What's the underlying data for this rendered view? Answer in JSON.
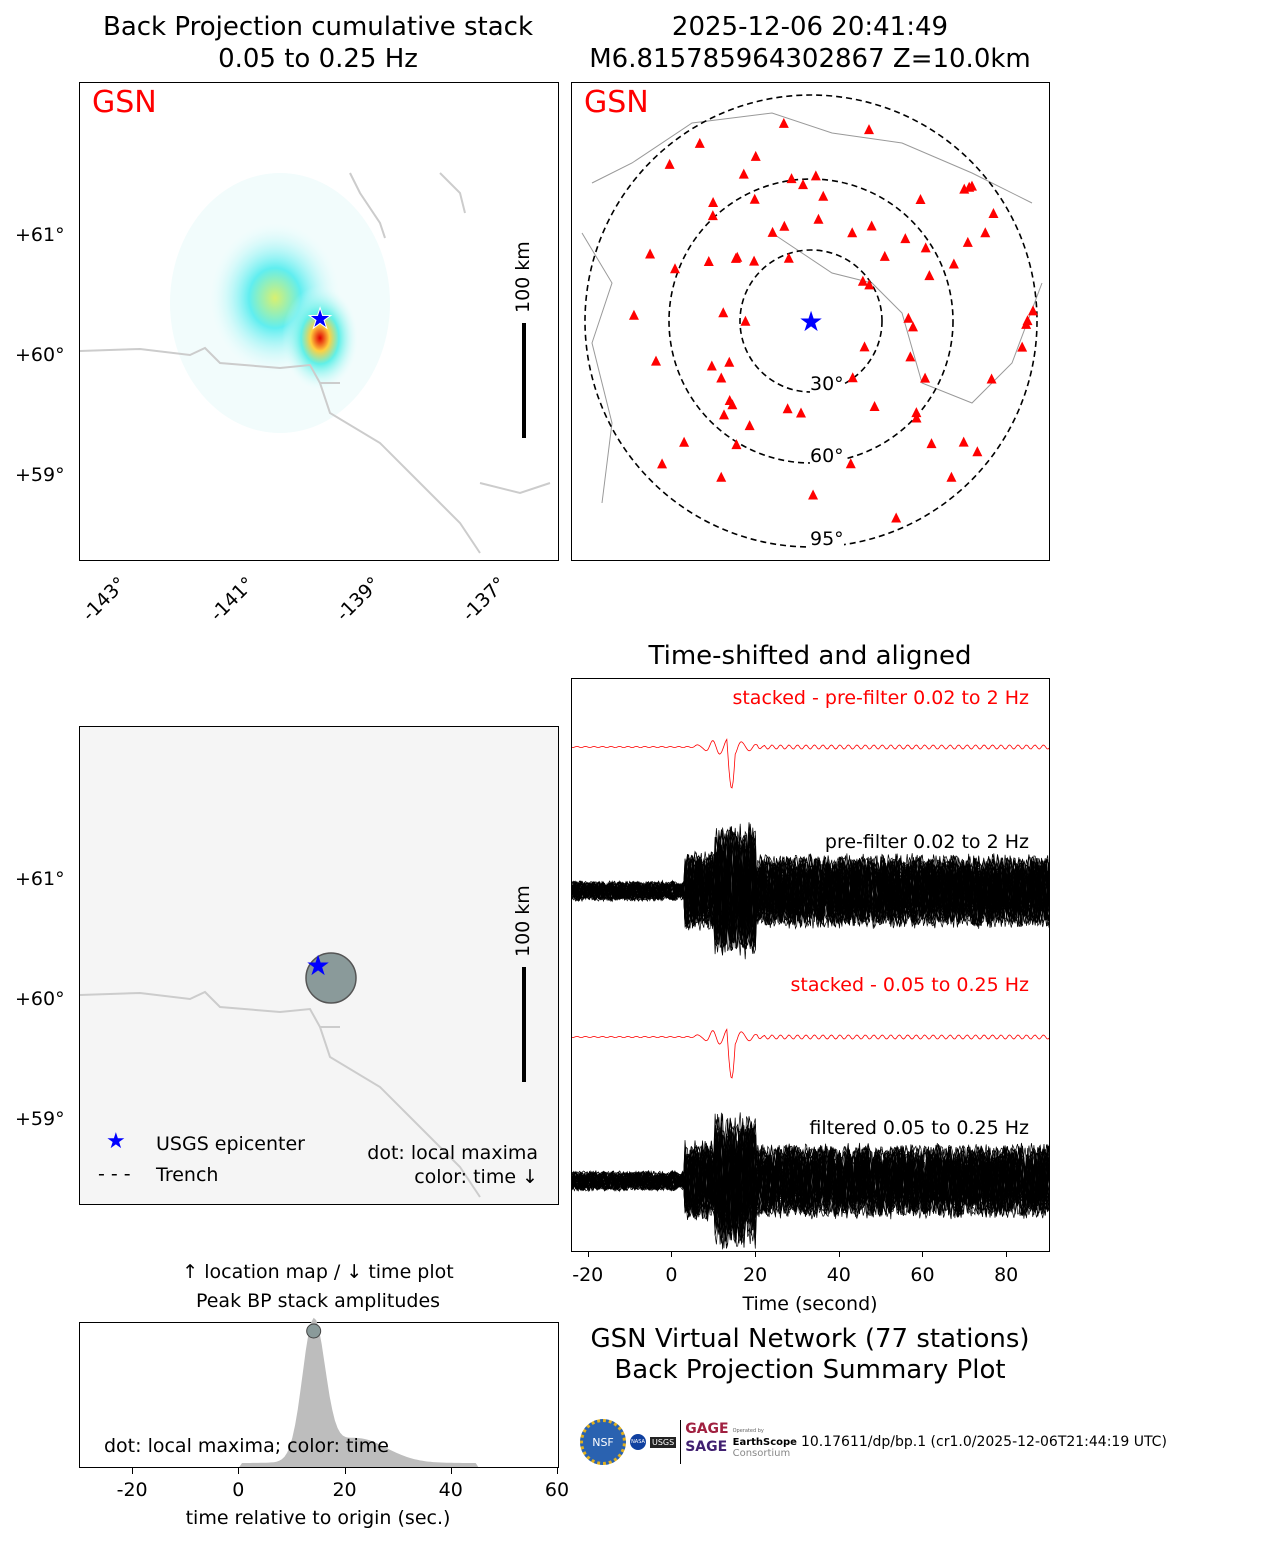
{
  "titles": {
    "bp_line1": "Back Projection cumulative stack",
    "bp_line2": "0.05 to 0.25 Hz",
    "event_line1": "2025-12-06 20:41:49",
    "event_line2": "M6.815785964302867 Z=10.0km",
    "waveform_title": "Time-shifted and aligned",
    "summary_line1": "GSN Virtual Network (77 stations)",
    "summary_line2": "Back Projection Summary Plot",
    "peak_line1": "↑ location map / ↓ time plot",
    "peak_line2": "Peak BP stack amplitudes"
  },
  "network_label": "GSN",
  "map": {
    "lat_ticks": [
      "+61°",
      "+60°",
      "+59°"
    ],
    "lon_ticks": [
      "-143°",
      "-141°",
      "-139°",
      "-137°"
    ],
    "scale_label": "100 km"
  },
  "station_map": {
    "distance_rings": [
      "30°",
      "60°",
      "95°"
    ],
    "station_count": 77,
    "colors": {
      "station": "#ff0000",
      "epicenter": "#0000ff"
    }
  },
  "legend": {
    "epicenter": "USGS epicenter",
    "trench": "Trench",
    "note_line1": "dot: local maxima",
    "note_line2": "color: time ↓"
  },
  "chart_data": [
    {
      "type": "line",
      "title": "Time-shifted and aligned",
      "xlabel": "Time (second)",
      "xlim": [
        -24,
        90
      ],
      "xticks": [
        "-20",
        "0",
        "20",
        "40",
        "60",
        "80"
      ],
      "traces": [
        {
          "label": "stacked - pre-filter 0.02 to 2 Hz",
          "color": "#ff0000"
        },
        {
          "label": "pre-filter 0.02 to 2 Hz",
          "color": "#000000"
        },
        {
          "label": "stacked - 0.05 to 0.25 Hz",
          "color": "#ff0000"
        },
        {
          "label": "filtered 0.05 to 0.25 Hz",
          "color": "#000000"
        }
      ]
    },
    {
      "type": "area",
      "title": "Peak BP stack amplitudes",
      "xlabel": "time relative to origin (sec.)",
      "xlim": [
        -30,
        60
      ],
      "xticks": [
        "-20",
        "0",
        "20",
        "40",
        "60"
      ],
      "peak_time": 14,
      "note": "dot: local maxima; color: time"
    }
  ],
  "footer": {
    "citation": "10.17611/dp/bp.1 (cr1.0/2025-12-06T21:44:19 UTC)",
    "logos": [
      "NSF",
      "NASA",
      "USGS",
      "GAGE",
      "SAGE",
      "EarthScope",
      "Consortium",
      "Operated by"
    ]
  }
}
